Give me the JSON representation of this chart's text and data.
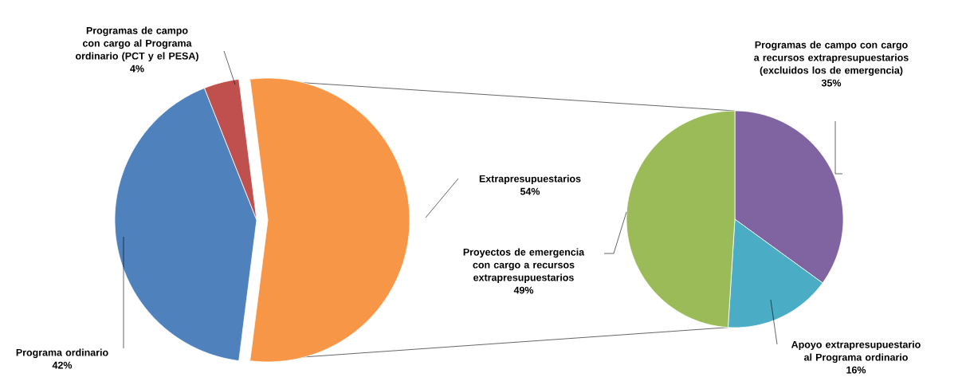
{
  "chart_data": [
    {
      "type": "pie",
      "categories": [
        "Programa ordinario",
        "Programas de campo con cargo al Programa ordinario (PCT y el PESA)",
        "Extrapresupuestarios"
      ],
      "values": [
        42,
        4,
        54
      ],
      "colors": [
        "#4f81bd",
        "#c0504d",
        "#f79646"
      ],
      "value_labels": [
        "42%",
        "4%",
        "54%"
      ]
    },
    {
      "type": "pie",
      "categories": [
        "Programas de campo con cargo a recursos extrapresupuestarios (excluidos los de emergencia)",
        "Apoyo extrapresupuestario al Programa ordinario",
        "Proyectos de emergencia con cargo a recursos extrapresupuestarios"
      ],
      "values": [
        35,
        16,
        49
      ],
      "colors": [
        "#8064a2",
        "#4bacc6",
        "#9bbb59"
      ],
      "value_labels": [
        "35%",
        "16%",
        "49%"
      ]
    }
  ]
}
